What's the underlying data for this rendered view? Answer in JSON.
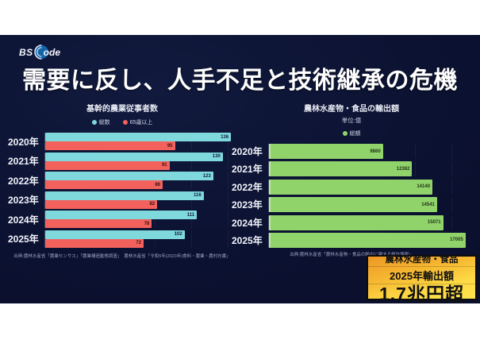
{
  "logo": {
    "bs": "BS",
    "ode": "ode"
  },
  "title": "需要に反し、人手不足と技術継承の危機",
  "chart_data": [
    {
      "type": "bar",
      "orientation": "horizontal",
      "title": "基幹的農業従事者数",
      "categories": [
        "2020年",
        "2021年",
        "2022年",
        "2023年",
        "2024年",
        "2025年"
      ],
      "series": [
        {
          "name": "総数",
          "color": "#7fd9dc",
          "value_color": "#0d1b3a",
          "values": [
            136,
            130,
            123,
            116,
            111,
            102
          ]
        },
        {
          "name": "65歳以上",
          "color": "#f2615c",
          "value_color": "#3a1212",
          "values": [
            95,
            91,
            86,
            82,
            78,
            72
          ]
        }
      ],
      "xlim": [
        0,
        140
      ],
      "grid": "vertical-faint",
      "legend_position": "top",
      "source": "出典:農林水産省「農業センサス」「農業構造動態調査」　農林水産省「令和5年(2023年)食料・農業・農村白書」"
    },
    {
      "type": "bar",
      "orientation": "horizontal",
      "title": "農林水産物・食品の輸出額",
      "subtitle": "単位:億",
      "categories": [
        "2020年",
        "2021年",
        "2022年",
        "2023年",
        "2024年",
        "2025年"
      ],
      "series": [
        {
          "name": "総額",
          "color": "#8fd36a",
          "value_color": "#23331a",
          "values": [
            9860,
            12382,
            14140,
            14541,
            15071,
            17005
          ]
        }
      ],
      "xlim": [
        0,
        17500
      ],
      "grid": "vertical-faint",
      "legend_position": "top",
      "source": "出典:農林水産省「農林水産物・食品の輸出に関する統計情報」"
    }
  ],
  "callout": {
    "line1": "農林水産物・食品",
    "line2": "2025年輸出額",
    "line3": "1.7兆円超"
  }
}
